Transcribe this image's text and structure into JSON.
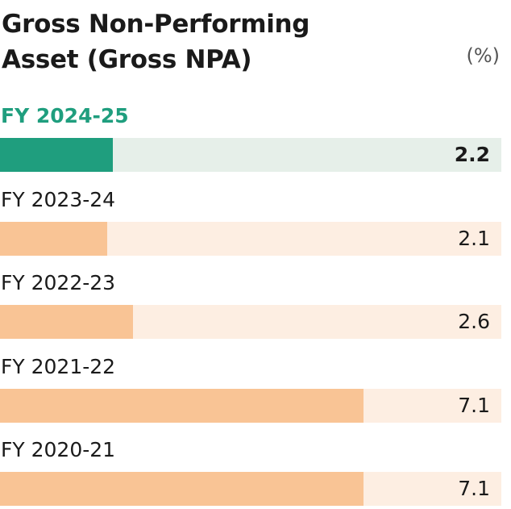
{
  "chart_data": {
    "type": "bar",
    "orientation": "horizontal",
    "title": "Gross Non-Performing Asset (Gross NPA)",
    "unit_label": "(%)",
    "categories": [
      "FY 2024-25",
      "FY 2023-24",
      "FY 2022-23",
      "FY 2021-22",
      "FY 2020-21"
    ],
    "values": [
      2.2,
      2.1,
      2.6,
      7.1,
      7.1
    ],
    "value_labels": [
      "2.2",
      "2.1",
      "2.6",
      "7.1",
      "7.1"
    ],
    "xlim": [
      0,
      9.8
    ],
    "highlight_index": 0,
    "colors": {
      "highlight_bar": "#1f9e7e",
      "highlight_track": "#e6efe9",
      "highlight_label": "#1f9e7e",
      "bar": "#f9c495",
      "track": "#fdeee2"
    }
  }
}
